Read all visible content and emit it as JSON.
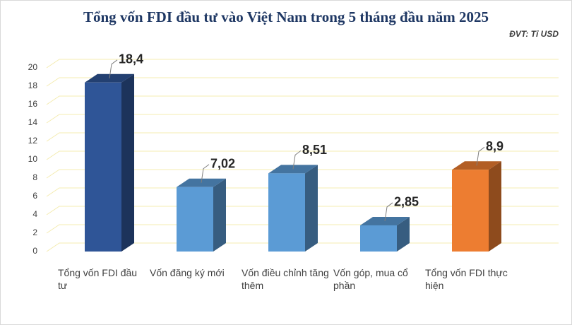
{
  "chart_data": {
    "type": "bar3d",
    "title": "Tổng vốn FDI đầu tư vào Việt Nam trong 5 tháng đầu năm 2025",
    "subtitle": "ĐVT: Tỉ USD",
    "categories": [
      "Tổng vốn FDI đầu tư",
      "Vốn đăng ký mới",
      "Vốn điều chỉnh tăng thêm",
      "Vốn góp, mua cổ phần",
      "Tổng vốn FDI thực hiện"
    ],
    "values": [
      18.4,
      7.02,
      8.51,
      2.85,
      8.9
    ],
    "value_labels": [
      "18,4",
      "7,02",
      "8,51",
      "2,85",
      "8,9"
    ],
    "colors": [
      "#2f5597",
      "#5b9bd5",
      "#5b9bd5",
      "#5b9bd5",
      "#ed7d31"
    ],
    "ylim": [
      0,
      20
    ],
    "yticks": [
      0,
      2,
      4,
      6,
      8,
      10,
      12,
      14,
      16,
      18,
      20
    ],
    "grid": true
  }
}
